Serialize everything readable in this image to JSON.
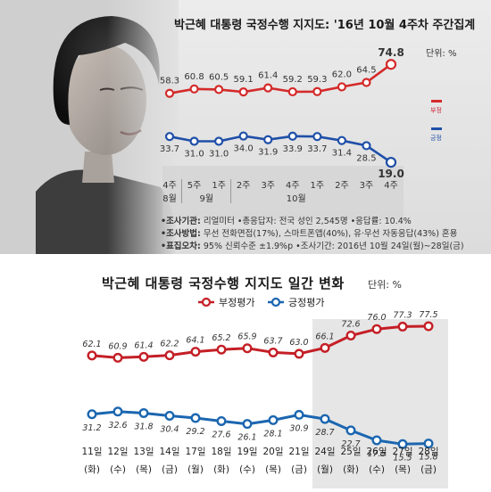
{
  "weekly": {
    "title": "박근혜 대통령 국정수행 지지도: '16년 10월 4주차 주간집계",
    "unit": "단위: %",
    "legend": {
      "negative": "부정",
      "positive": "긍정"
    },
    "colors": {
      "negative": "#d42a2a",
      "positive": "#1f4fa8"
    },
    "meta": [
      {
        "key": "•조사기관:",
        "value": "리얼미터 •총응답자: 전국 성인 2,545명 •응답률: 10.4%"
      },
      {
        "key": "•조사방법:",
        "value": "무선 전화면접(17%), 스마트폰앱(40%), 유·무선 자동응답(43%) 혼용"
      },
      {
        "key": "•표집오차:",
        "value": "95% 신뢰수준 ±1.9%p •조사기간: 2016년 10월 24일(월)~28일(금)"
      }
    ]
  },
  "daily": {
    "title": "박근혜 대통령 국정수행 지지도 일간 변화",
    "unit": "단위: %",
    "legend": {
      "negative": "부정평가",
      "positive": "긍정평가"
    },
    "colors": {
      "negative": "#c41f26",
      "positive": "#1b66b0"
    }
  },
  "chart_data": [
    {
      "type": "line",
      "title": "박근혜 대통령 국정수행 지지도: '16년 10월 4주차 주간집계",
      "categories": [
        "4주",
        "5주",
        "1주",
        "2주",
        "3주",
        "4주",
        "1주",
        "2주",
        "3주",
        "4주"
      ],
      "month_labels": [
        {
          "label": "8월",
          "start": 0,
          "end": 0
        },
        {
          "label": "9월",
          "start": 1,
          "end": 2
        },
        {
          "label": "10월",
          "start": 3,
          "end": 9
        }
      ],
      "series": [
        {
          "name": "부정",
          "values": [
            58.3,
            60.8,
            60.5,
            59.1,
            61.4,
            59.2,
            59.3,
            62.0,
            64.5,
            74.8
          ]
        },
        {
          "name": "긍정",
          "values": [
            33.7,
            31.0,
            31.0,
            34.0,
            31.9,
            33.9,
            33.7,
            31.4,
            28.5,
            19.0
          ]
        }
      ],
      "ylabel": "단위: %",
      "ylim": [
        15,
        80
      ],
      "legend": "right",
      "grid": false
    },
    {
      "type": "line",
      "title": "박근혜 대통령 국정수행 지지도 일간 변화",
      "categories": [
        "11일",
        "12일",
        "13일",
        "14일",
        "17일",
        "18일",
        "19일",
        "20일",
        "21일",
        "24일",
        "25일",
        "26일",
        "27일",
        "28일"
      ],
      "weekdays": [
        "(화)",
        "(수)",
        "(목)",
        "(금)",
        "(월)",
        "(화)",
        "(수)",
        "(목)",
        "(금)",
        "(월)",
        "(화)",
        "(수)",
        "(목)",
        "(금)"
      ],
      "series": [
        {
          "name": "부정평가",
          "values": [
            62.1,
            60.9,
            61.4,
            62.2,
            64.1,
            65.2,
            65.9,
            63.7,
            63.0,
            66.1,
            72.6,
            76.0,
            77.3,
            77.5
          ]
        },
        {
          "name": "긍정평가",
          "values": [
            31.2,
            32.6,
            31.8,
            30.4,
            29.2,
            27.6,
            26.1,
            28.1,
            30.9,
            28.7,
            22.7,
            17.5,
            15.5,
            15.8
          ]
        }
      ],
      "highlight_range": [
        "24일",
        "28일"
      ],
      "ylabel": "단위: %",
      "ylim": [
        10,
        85
      ],
      "legend": "top",
      "grid": false
    }
  ]
}
